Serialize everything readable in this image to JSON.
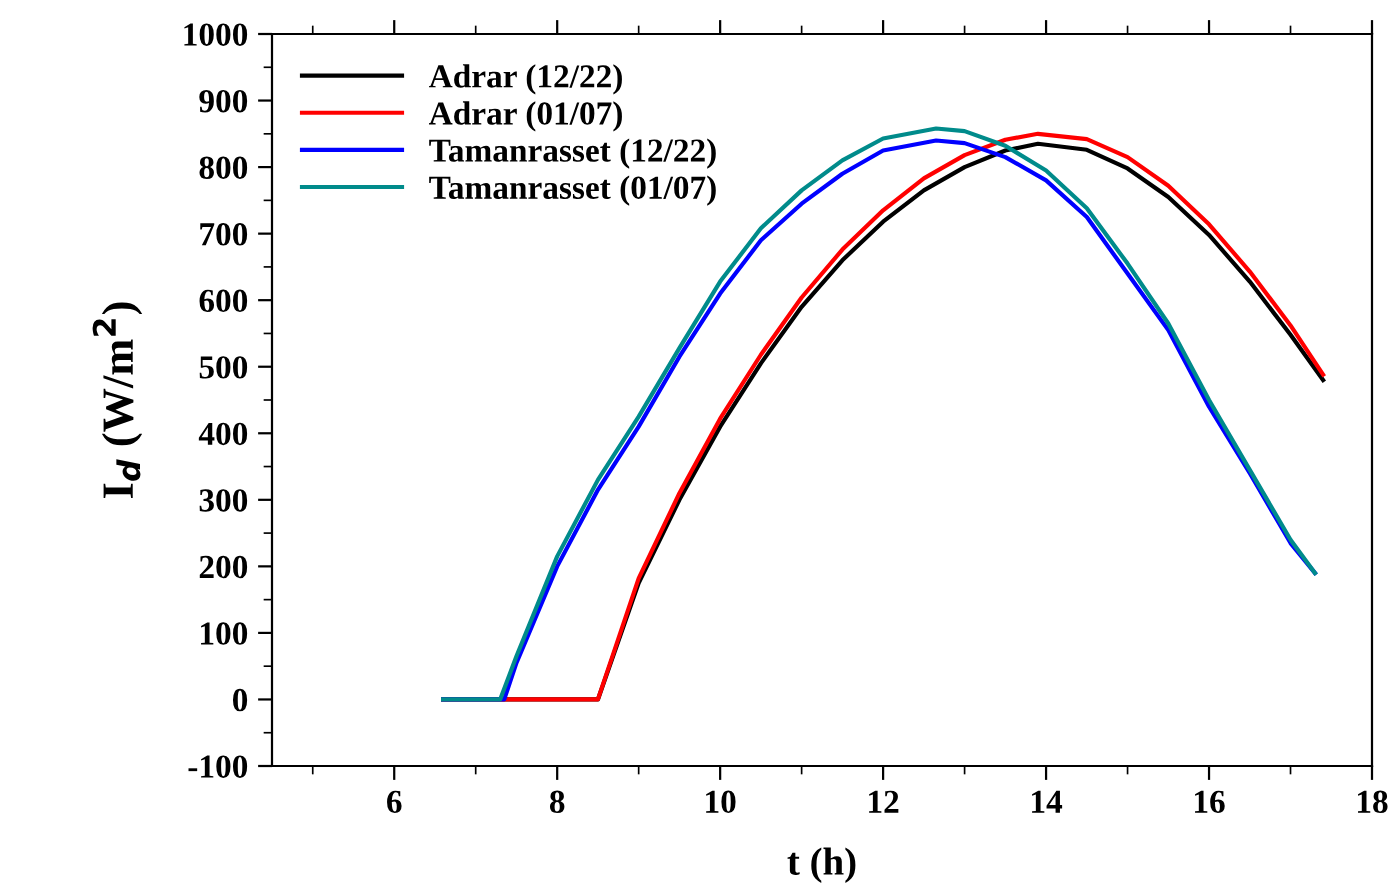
{
  "chart_data": {
    "type": "line",
    "xlabel": "t (h)",
    "ylabel": "I$_{d}$ (W/m$^{2}$)",
    "xlim": [
      4.5,
      18
    ],
    "ylim": [
      -100,
      1000
    ],
    "xticks": [
      {
        "value": 5,
        "label": null
      },
      6,
      {
        "value": 7,
        "label": null
      },
      8,
      {
        "value": 9,
        "label": null
      },
      10,
      {
        "value": 11,
        "label": null
      },
      12,
      {
        "value": 13,
        "label": null
      },
      14,
      {
        "value": 15,
        "label": null
      },
      16,
      {
        "value": 17,
        "label": null
      },
      18
    ],
    "yticks": [
      -100,
      {
        "value": -50,
        "label": null
      },
      0,
      {
        "value": 50,
        "label": null
      },
      100,
      {
        "value": 150,
        "label": null
      },
      200,
      {
        "value": 250,
        "label": null
      },
      300,
      {
        "value": 350,
        "label": null
      },
      400,
      {
        "value": 450,
        "label": null
      },
      500,
      {
        "value": 550,
        "label": null
      },
      600,
      {
        "value": 650,
        "label": null
      },
      700,
      {
        "value": 750,
        "label": null
      },
      800,
      {
        "value": 850,
        "label": null
      },
      900,
      {
        "value": 950,
        "label": null
      },
      1000
    ],
    "grid": false,
    "legend": "top left",
    "marker": "none",
    "line_style": "solid",
    "series": [
      {
        "name": "Adrar (12/22)",
        "color": "#000000",
        "x": [
          6.6,
          8.5,
          9,
          9.5,
          10,
          10.5,
          11,
          11.5,
          12,
          12.5,
          13,
          13.5,
          13.9,
          14.5,
          15,
          15.5,
          16,
          16.5,
          17,
          17.4
        ],
        "values": [
          0,
          0,
          175,
          300,
          410,
          505,
          590,
          660,
          718,
          765,
          800,
          825,
          835,
          826,
          798,
          755,
          698,
          628,
          548,
          480
        ]
      },
      {
        "name": "Adrar (01/07)",
        "color": "#ff0000",
        "x": [
          6.6,
          8.5,
          9,
          9.5,
          10,
          10.5,
          11,
          11.5,
          12,
          12.5,
          13,
          13.5,
          13.9,
          14.5,
          15,
          15.5,
          16,
          16.5,
          17,
          17.4
        ],
        "values": [
          0,
          0,
          182,
          310,
          422,
          518,
          604,
          676,
          735,
          783,
          818,
          841,
          850,
          842,
          815,
          772,
          714,
          643,
          562,
          488
        ]
      },
      {
        "name": "Tamanrasset (12/22)",
        "color": "#0000ff",
        "x": [
          6.6,
          7.35,
          7.5,
          8,
          8.5,
          9,
          9.5,
          10,
          10.5,
          11,
          11.5,
          12,
          12.65,
          13,
          13.5,
          14,
          14.5,
          15,
          15.5,
          16,
          16.5,
          17,
          17.3
        ],
        "values": [
          0,
          0,
          55,
          200,
          315,
          410,
          515,
          610,
          690,
          745,
          790,
          825,
          840,
          836,
          815,
          780,
          725,
          640,
          555,
          440,
          340,
          235,
          190
        ]
      },
      {
        "name": "Tamanrasset (01/07)",
        "color": "#008b8b",
        "x": [
          6.6,
          7.3,
          7.5,
          8,
          8.5,
          9,
          9.5,
          10,
          10.5,
          11,
          11.5,
          12,
          12.65,
          13,
          13.5,
          14,
          14.5,
          15,
          15.5,
          16,
          16.5,
          17,
          17.3
        ],
        "values": [
          0,
          0,
          65,
          215,
          330,
          425,
          528,
          628,
          708,
          765,
          810,
          843,
          858,
          854,
          832,
          795,
          738,
          655,
          565,
          450,
          345,
          240,
          190
        ]
      }
    ]
  }
}
